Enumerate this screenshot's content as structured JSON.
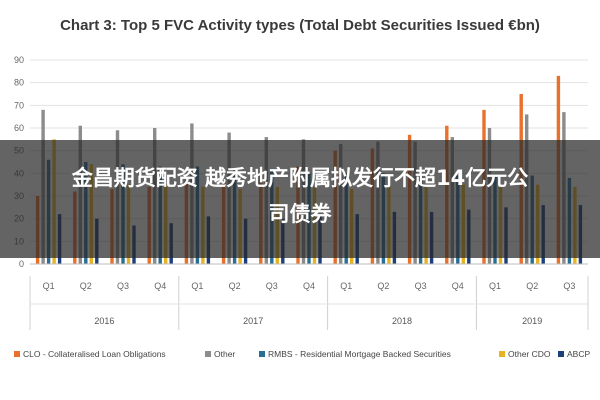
{
  "chart_data": {
    "type": "bar",
    "title": "Chart 3: Top 5 FVC Activity types (Total Debt Securities Issued €bn)",
    "xlabel": "",
    "ylabel": "",
    "ylim": [
      0,
      90
    ],
    "yticks": [
      0,
      10,
      20,
      30,
      40,
      50,
      60,
      70,
      80,
      90
    ],
    "categories": [
      "Q1",
      "Q2",
      "Q3",
      "Q4",
      "Q1",
      "Q2",
      "Q3",
      "Q4",
      "Q1",
      "Q2",
      "Q3",
      "Q4",
      "Q1",
      "Q2",
      "Q3"
    ],
    "year_groups": [
      {
        "label": "2016",
        "count": 4
      },
      {
        "label": "2017",
        "count": 4
      },
      {
        "label": "2018",
        "count": 4
      },
      {
        "label": "2019",
        "count": 3
      }
    ],
    "grid": true,
    "legend_position": "bottom",
    "series": [
      {
        "name": "CLO - Collateralised Loan Obligations",
        "color": "#e8712b",
        "values": [
          30,
          32,
          33,
          34,
          37,
          37,
          40,
          43,
          50,
          51,
          57,
          61,
          68,
          75,
          83
        ]
      },
      {
        "name": "Other",
        "color": "#8c8c8c",
        "values": [
          68,
          61,
          59,
          60,
          62,
          58,
          56,
          55,
          53,
          54,
          54,
          56,
          60,
          66,
          67
        ]
      },
      {
        "name": "RMBS - Residential Mortgage Backed Securities",
        "color": "#2a6e96",
        "values": [
          46,
          45,
          44,
          43,
          43,
          42,
          41,
          40,
          40,
          40,
          40,
          39,
          39,
          39,
          38
        ]
      },
      {
        "name": "Other CDO",
        "color": "#e8b323",
        "values": [
          55,
          44,
          35,
          35,
          34,
          33,
          34,
          34,
          33,
          34,
          34,
          35,
          34,
          35,
          34
        ]
      },
      {
        "name": "ABCP",
        "color": "#1f3f7a",
        "values": [
          22,
          20,
          17,
          18,
          21,
          20,
          20,
          21,
          22,
          23,
          23,
          24,
          25,
          26,
          26
        ]
      }
    ]
  },
  "overlay": {
    "line1": "金昌期货配资 越秀地产附属拟发行不超14亿元公",
    "line2": "司债券"
  }
}
